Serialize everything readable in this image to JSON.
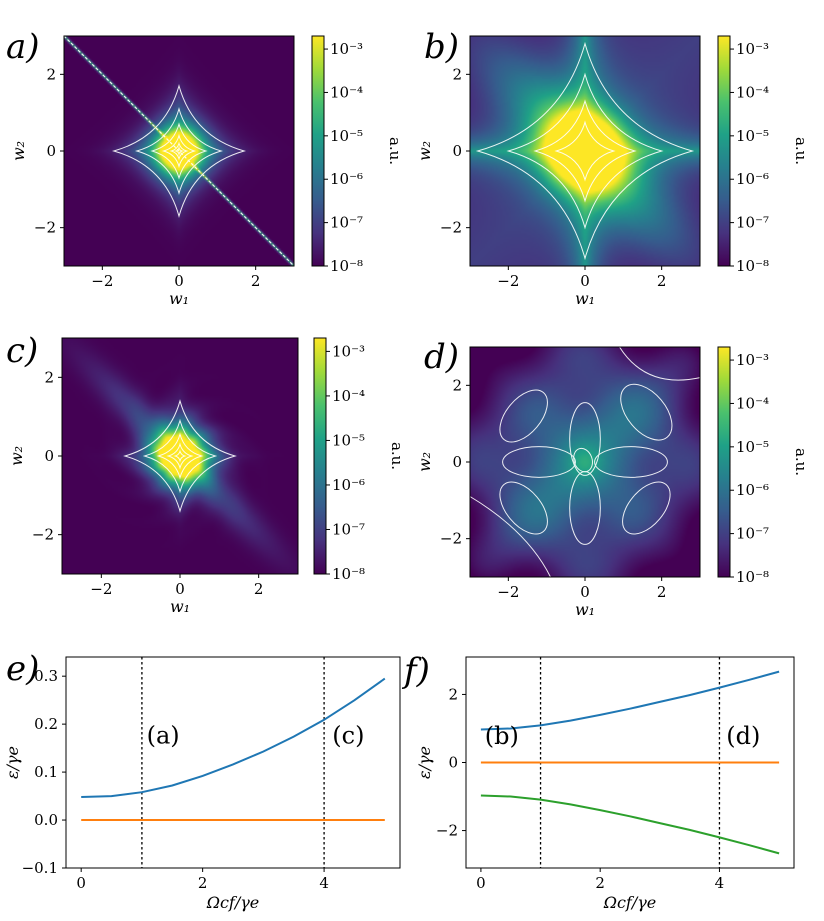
{
  "figure": {
    "colorbar_label": "a.u.",
    "colorbar_ticks": [
      "10⁻³",
      "10⁻⁴",
      "10⁻⁵",
      "10⁻⁶",
      "10⁻⁷",
      "10⁻⁸"
    ],
    "colormap": [
      "#440154",
      "#46327e",
      "#365c8d",
      "#277f8e",
      "#1fa187",
      "#4ac16d",
      "#a0da39",
      "#fde725"
    ],
    "contour_color": "#ffffff",
    "heatmap_xlabel": "w₁",
    "heatmap_ylabel": "w₂",
    "line_xlabel": "Ωcf/γe",
    "line_ylabel": "ε/γe"
  },
  "chart_data": [
    {
      "panel": "a)",
      "type": "heatmap",
      "title": "",
      "xlabel": "w₁",
      "ylabel": "w₂",
      "xlim": [
        -3,
        3
      ],
      "ylim": [
        -3,
        3
      ],
      "xticks": [
        "−2",
        "0",
        "2"
      ],
      "yticks": [
        "−2",
        "0",
        "2"
      ],
      "color_scale": "log",
      "clim": [
        1e-08,
        0.002
      ],
      "description_values": {
        "peak": 0.002,
        "background": 1e-08,
        "anti_diagonal_line": true
      }
    },
    {
      "panel": "b)",
      "type": "heatmap",
      "title": "",
      "xlabel": "w₁",
      "ylabel": "w₂",
      "xlim": [
        -3,
        3
      ],
      "ylim": [
        -3,
        3
      ],
      "xticks": [
        "−2",
        "0",
        "2"
      ],
      "yticks": [
        "−2",
        "0",
        "2"
      ],
      "color_scale": "log",
      "clim": [
        1e-08,
        0.002
      ],
      "description_values": {
        "peak": 0.002,
        "background": 1e-07
      }
    },
    {
      "panel": "c)",
      "type": "heatmap",
      "title": "",
      "xlabel": "w₁",
      "ylabel": "w₂",
      "xlim": [
        -3,
        3
      ],
      "ylim": [
        -3,
        3
      ],
      "xticks": [
        "−2",
        "0",
        "2"
      ],
      "yticks": [
        "−2",
        "0",
        "2"
      ],
      "color_scale": "log",
      "clim": [
        1e-08,
        0.002
      ],
      "description_values": {
        "peak": 0.001,
        "background": 1e-08
      }
    },
    {
      "panel": "d)",
      "type": "heatmap",
      "title": "",
      "xlabel": "w₁",
      "ylabel": "w₂",
      "xlim": [
        -3,
        3
      ],
      "ylim": [
        -3,
        3
      ],
      "xticks": [
        "−2",
        "0",
        "2"
      ],
      "yticks": [
        "−2",
        "0",
        "2"
      ],
      "color_scale": "log",
      "clim": [
        1e-08,
        0.002
      ],
      "description_values": {
        "peak": 3e-05,
        "background": 1e-07
      }
    },
    {
      "panel": "e)",
      "type": "line",
      "title": "",
      "xlabel": "Ωcf/γe",
      "ylabel": "ε/γe",
      "xlim": [
        -0.25,
        5.25
      ],
      "ylim": [
        -0.1,
        0.34
      ],
      "xticks": [
        0,
        2,
        4
      ],
      "yticks": [
        -0.1,
        0.0,
        0.1,
        0.2,
        0.3
      ],
      "ytick_labels": [
        "−0.1",
        "0.0",
        "0.1",
        "0.2",
        "0.3"
      ],
      "vlines": [
        1,
        4
      ],
      "annotations": [
        {
          "text": "(a)",
          "x": 1.35,
          "y": 0.16
        },
        {
          "text": "(c)",
          "x": 4.4,
          "y": 0.16
        }
      ],
      "x": [
        0,
        0.5,
        1,
        1.5,
        2,
        2.5,
        3,
        3.5,
        4,
        4.5,
        5
      ],
      "series": [
        {
          "name": "upper",
          "color": "#1f77b4",
          "values": [
            0.048,
            0.05,
            0.058,
            0.072,
            0.092,
            0.116,
            0.143,
            0.174,
            0.209,
            0.25,
            0.295
          ]
        },
        {
          "name": "zero",
          "color": "#ff7f0e",
          "values": [
            0,
            0,
            0,
            0,
            0,
            0,
            0,
            0,
            0,
            0,
            0
          ]
        }
      ]
    },
    {
      "panel": "f)",
      "type": "line",
      "title": "",
      "xlabel": "Ωcf/γe",
      "ylabel": "ε/γe",
      "xlim": [
        -0.25,
        5.25
      ],
      "ylim": [
        -3.1,
        3.1
      ],
      "xticks": [
        0,
        2,
        4
      ],
      "yticks": [
        -2,
        0,
        2
      ],
      "ytick_labels": [
        "−2",
        "0",
        "2"
      ],
      "vlines": [
        1,
        4
      ],
      "annotations": [
        {
          "text": "(b)",
          "x": 0.35,
          "y": 0.55
        },
        {
          "text": "(d)",
          "x": 4.4,
          "y": 0.55
        }
      ],
      "x": [
        0,
        0.5,
        1,
        1.5,
        2,
        2.5,
        3,
        3.5,
        4,
        4.5,
        5
      ],
      "series": [
        {
          "name": "upper",
          "color": "#1f77b4",
          "values": [
            0.97,
            1.0,
            1.09,
            1.23,
            1.4,
            1.58,
            1.78,
            1.98,
            2.2,
            2.43,
            2.67
          ]
        },
        {
          "name": "zero",
          "color": "#ff7f0e",
          "values": [
            0,
            0,
            0,
            0,
            0,
            0,
            0,
            0,
            0,
            0,
            0
          ]
        },
        {
          "name": "lower",
          "color": "#2ca02c",
          "values": [
            -0.97,
            -1.0,
            -1.09,
            -1.23,
            -1.4,
            -1.58,
            -1.78,
            -1.98,
            -2.2,
            -2.43,
            -2.67
          ]
        }
      ]
    }
  ]
}
